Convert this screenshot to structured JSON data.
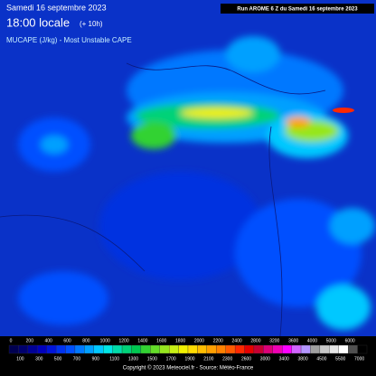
{
  "header": {
    "date": "Samedi 16 septembre 2023",
    "time": "18:00 locale",
    "lead": "(+ 10h)",
    "parameter": "MUCAPE (J/kg) - Most Unstable CAPE",
    "run": "Run AROME 6 Z du Samedi 16 septembre 2023"
  },
  "colorbar": {
    "levels": [
      0,
      100,
      200,
      300,
      400,
      500,
      600,
      700,
      800,
      900,
      1000,
      1100,
      1200,
      1300,
      1400,
      1500,
      1600,
      1700,
      1800,
      1900,
      2000,
      2100,
      2200,
      2300,
      2400,
      2600,
      2800,
      3000,
      3200,
      3400,
      3600,
      3800,
      4000,
      4500,
      5000,
      5500,
      6000,
      7000
    ],
    "colors": [
      "#000050",
      "#00006e",
      "#000096",
      "#0000be",
      "#0014dc",
      "#0032f0",
      "#0050ff",
      "#0078ff",
      "#00a0ff",
      "#00c8ff",
      "#00e6e6",
      "#00dcaa",
      "#00d278",
      "#00c850",
      "#32d232",
      "#64dc28",
      "#96e61e",
      "#c8f014",
      "#f0f000",
      "#ffdc00",
      "#ffbe00",
      "#ffa000",
      "#ff8200",
      "#ff5a00",
      "#ff2800",
      "#e60000",
      "#c80032",
      "#dc0078",
      "#f000b4",
      "#ff00ff",
      "#d264ff",
      "#b496ff",
      "#a0a0a0",
      "#c8c8c8",
      "#e6e6e6",
      "#ffffff",
      "#505050",
      "#000000"
    ]
  },
  "footer": {
    "copyright": "Copyright © 2023 Meteociel.fr - Source: Météo-France"
  }
}
